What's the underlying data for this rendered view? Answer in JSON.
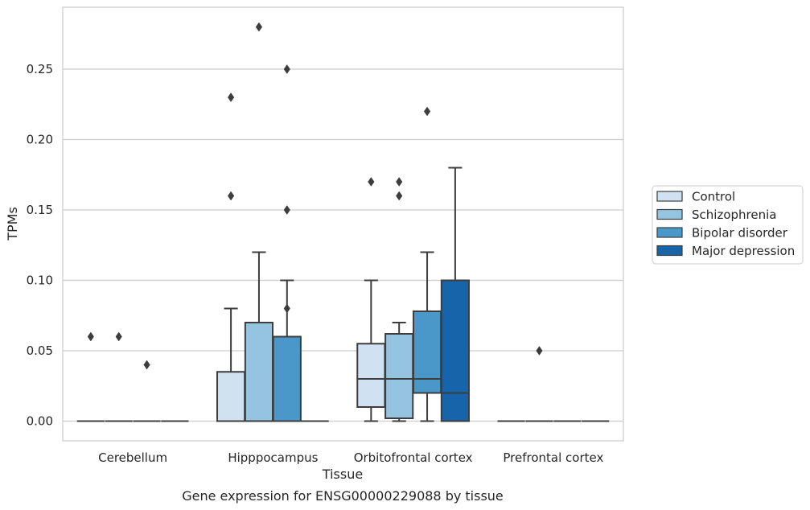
{
  "chart_data": {
    "type": "box",
    "caption": "Gene expression for ENSG00000229088 by tissue",
    "xlabel": "Tissue",
    "ylabel": "TPMs",
    "ylim": [
      -0.014,
      0.294
    ],
    "yticks": [
      "0.00",
      "0.05",
      "0.10",
      "0.15",
      "0.20",
      "0.25"
    ],
    "grid": true,
    "legend_position": "right",
    "categories": [
      "Cerebellum",
      "Hipppocampus",
      "Orbitofrontal cortex",
      "Prefrontal cortex"
    ],
    "series": [
      {
        "name": "Control",
        "color": "#d0e1f2"
      },
      {
        "name": "Schizophrenia",
        "color": "#94c4df"
      },
      {
        "name": "Bipolar disorder",
        "color": "#4a98c9"
      },
      {
        "name": "Major depression",
        "color": "#1764ab"
      }
    ],
    "boxes": [
      {
        "category": 0,
        "series": 0,
        "whislo": 0,
        "q1": 0,
        "med": 0,
        "q3": 0,
        "whishi": 0,
        "fliers": [
          0.06
        ]
      },
      {
        "category": 0,
        "series": 1,
        "whislo": 0,
        "q1": 0,
        "med": 0,
        "q3": 0,
        "whishi": 0,
        "fliers": [
          0.06
        ]
      },
      {
        "category": 0,
        "series": 2,
        "whislo": 0,
        "q1": 0,
        "med": 0,
        "q3": 0,
        "whishi": 0,
        "fliers": [
          0.04
        ]
      },
      {
        "category": 0,
        "series": 3,
        "whislo": 0,
        "q1": 0,
        "med": 0,
        "q3": 0,
        "whishi": 0,
        "fliers": []
      },
      {
        "category": 1,
        "series": 0,
        "whislo": 0,
        "q1": 0,
        "med": 0,
        "q3": 0.035,
        "whishi": 0.08,
        "fliers": [
          0.16,
          0.23
        ]
      },
      {
        "category": 1,
        "series": 1,
        "whislo": 0,
        "q1": 0,
        "med": 0,
        "q3": 0.07,
        "whishi": 0.12,
        "fliers": [
          0.28
        ]
      },
      {
        "category": 1,
        "series": 2,
        "whislo": 0,
        "q1": 0,
        "med": 0,
        "q3": 0.06,
        "whishi": 0.1,
        "fliers": [
          0.08,
          0.15,
          0.25
        ]
      },
      {
        "category": 1,
        "series": 3,
        "whislo": 0,
        "q1": 0,
        "med": 0,
        "q3": 0,
        "whishi": 0,
        "fliers": []
      },
      {
        "category": 2,
        "series": 0,
        "whislo": 0,
        "q1": 0.01,
        "med": 0.03,
        "q3": 0.055,
        "whishi": 0.1,
        "fliers": [
          0.17
        ]
      },
      {
        "category": 2,
        "series": 1,
        "whislo": 0,
        "q1": 0.002,
        "med": 0.03,
        "q3": 0.062,
        "whishi": 0.07,
        "fliers": [
          0.16,
          0.17
        ]
      },
      {
        "category": 2,
        "series": 2,
        "whislo": 0,
        "q1": 0.02,
        "med": 0.03,
        "q3": 0.078,
        "whishi": 0.12,
        "fliers": [
          0.22
        ]
      },
      {
        "category": 2,
        "series": 3,
        "whislo": 0,
        "q1": 0,
        "med": 0.02,
        "q3": 0.1,
        "whishi": 0.18,
        "fliers": []
      },
      {
        "category": 3,
        "series": 0,
        "whislo": 0,
        "q1": 0,
        "med": 0,
        "q3": 0,
        "whishi": 0,
        "fliers": []
      },
      {
        "category": 3,
        "series": 1,
        "whislo": 0,
        "q1": 0,
        "med": 0,
        "q3": 0,
        "whishi": 0,
        "fliers": [
          0.05
        ]
      },
      {
        "category": 3,
        "series": 2,
        "whislo": 0,
        "q1": 0,
        "med": 0,
        "q3": 0,
        "whishi": 0,
        "fliers": []
      },
      {
        "category": 3,
        "series": 3,
        "whislo": 0,
        "q1": 0,
        "med": 0,
        "q3": 0,
        "whishi": 0,
        "fliers": []
      }
    ]
  }
}
